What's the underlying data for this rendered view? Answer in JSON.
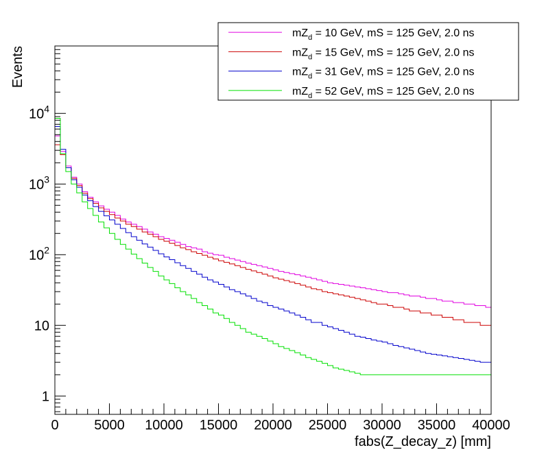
{
  "chart_data": {
    "type": "histogram",
    "title": "",
    "xlabel": "fabs(Z_decay_z) [mm]",
    "ylabel": "Events",
    "xlim": [
      0,
      40000
    ],
    "ylim": [
      0.55,
      90000
    ],
    "yscale": "log",
    "bin_width": 500,
    "x_ticks": [
      0,
      5000,
      10000,
      15000,
      20000,
      25000,
      30000,
      35000,
      40000
    ],
    "x_tick_labels": [
      "0",
      "5000",
      "10000",
      "15000",
      "20000",
      "25000",
      "30000",
      "35000",
      "40000"
    ],
    "y_ticks": [
      {
        "value": 1,
        "base": "1",
        "exp": ""
      },
      {
        "value": 10,
        "base": "10",
        "exp": ""
      },
      {
        "value": 100,
        "base": "10",
        "exp": "2"
      },
      {
        "value": 1000,
        "base": "10",
        "exp": "3"
      },
      {
        "value": 10000,
        "base": "10",
        "exp": "4"
      }
    ],
    "legend": {
      "position": "top-right",
      "entries": [
        {
          "prefix": "mZ",
          "sub": "d",
          "suffix": " = 10 GeV, mS = 125 GeV, 2.0 ns",
          "color": "#e000e0"
        },
        {
          "prefix": "mZ",
          "sub": "d",
          "suffix": " = 15 GeV, mS = 125 GeV, 2.0 ns",
          "color": "#cc0000"
        },
        {
          "prefix": "mZ",
          "sub": "d",
          "suffix": " = 31 GeV, mS = 125 GeV, 2.0 ns",
          "color": "#0000cc"
        },
        {
          "prefix": "mZ",
          "sub": "d",
          "suffix": " = 52 GeV, mS = 125 GeV, 2.0 ns",
          "color": "#00e000"
        }
      ]
    },
    "series": [
      {
        "name": "mZd = 10 GeV, mS = 125 GeV, 2.0 ns",
        "color": "#e000e0",
        "values": [
          4800,
          2900,
          1800,
          1250,
          1000,
          780,
          650,
          560,
          490,
          440,
          400,
          360,
          320,
          290,
          270,
          250,
          230,
          210,
          195,
          180,
          170,
          160,
          150,
          140,
          130,
          125,
          120,
          110,
          105,
          100,
          98,
          92,
          88,
          84,
          80,
          76,
          73,
          70,
          67,
          64,
          61,
          58,
          56,
          54,
          52,
          50,
          48,
          46,
          44,
          42,
          40,
          39,
          38,
          37,
          36,
          35,
          34,
          33,
          32,
          31,
          30,
          29,
          29,
          28,
          27,
          26,
          26,
          25,
          24,
          24,
          23,
          22,
          22,
          21,
          21,
          20,
          20,
          19,
          19,
          18
        ]
      },
      {
        "name": "mZd = 15 GeV, mS = 125 GeV, 2.0 ns",
        "color": "#cc0000",
        "values": [
          3600,
          2600,
          1700,
          1200,
          950,
          740,
          620,
          530,
          460,
          410,
          370,
          330,
          300,
          270,
          250,
          230,
          210,
          195,
          180,
          165,
          155,
          145,
          135,
          125,
          118,
          110,
          104,
          98,
          92,
          87,
          82,
          78,
          74,
          70,
          66,
          62,
          59,
          56,
          53,
          50,
          47,
          45,
          43,
          41,
          39,
          37,
          35,
          33,
          32,
          30,
          29,
          28,
          27,
          26,
          25,
          24,
          23,
          22,
          21,
          20,
          20,
          19,
          18,
          18,
          17,
          16,
          16,
          15,
          15,
          14,
          14,
          13,
          13,
          12,
          12,
          11,
          11,
          11,
          10,
          10
        ]
      },
      {
        "name": "mZd = 31 GeV, mS = 125 GeV, 2.0 ns",
        "color": "#0000cc",
        "values": [
          6500,
          3100,
          1700,
          1150,
          900,
          700,
          580,
          480,
          410,
          355,
          310,
          270,
          235,
          205,
          180,
          160,
          142,
          128,
          115,
          103,
          93,
          85,
          77,
          70,
          64,
          58,
          53,
          48,
          44,
          41,
          38,
          35,
          32,
          30,
          28,
          26,
          24,
          22,
          21,
          19,
          18,
          17,
          16,
          15,
          14,
          13,
          12,
          11,
          11,
          10,
          9.5,
          9,
          8.5,
          8,
          7.5,
          7,
          6.8,
          6.5,
          6.2,
          6,
          5.8,
          5.5,
          5.2,
          5,
          4.8,
          4.6,
          4.4,
          4.2,
          4,
          3.9,
          3.8,
          3.7,
          3.6,
          3.5,
          3.4,
          3.3,
          3.2,
          3.1,
          3,
          3
        ]
      },
      {
        "name": "mZd = 52 GeV, mS = 125 GeV, 2.0 ns",
        "color": "#00e000",
        "values": [
          8500,
          2700,
          1500,
          1000,
          750,
          560,
          450,
          360,
          290,
          240,
          200,
          165,
          140,
          120,
          102,
          88,
          76,
          66,
          58,
          50,
          44,
          39,
          34,
          30,
          27,
          24,
          21,
          19,
          17,
          15,
          14,
          12.5,
          11,
          10,
          9,
          8,
          7.5,
          7,
          6.5,
          6,
          5.5,
          5,
          4.7,
          4.4,
          4.1,
          3.8,
          3.5,
          3.3,
          3.1,
          2.9,
          2.7,
          2.5,
          2.4,
          2.3,
          2.2,
          2.1,
          2,
          2,
          2,
          2,
          2,
          2,
          2,
          2,
          2,
          2,
          2,
          2,
          2,
          2,
          2,
          2,
          2,
          2,
          2,
          2,
          2,
          2,
          2,
          2
        ]
      }
    ]
  }
}
